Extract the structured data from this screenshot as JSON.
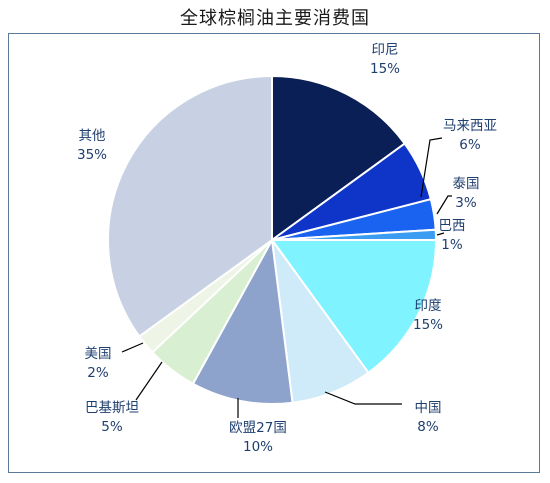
{
  "chart_data": {
    "type": "pie",
    "title": "全球棕榈油主要消费国",
    "slices": [
      {
        "label": "印尼",
        "value": 15,
        "value_label": "15%",
        "color": "#0a1f55"
      },
      {
        "label": "马来西亚",
        "value": 6,
        "value_label": "6%",
        "color": "#0e34c8"
      },
      {
        "label": "泰国",
        "value": 3,
        "value_label": "3%",
        "color": "#1a63f0"
      },
      {
        "label": "巴西",
        "value": 1,
        "value_label": "1%",
        "color": "#3a9df2"
      },
      {
        "label": "印度",
        "value": 15,
        "value_label": "15%",
        "color": "#7ff3ff"
      },
      {
        "label": "中国",
        "value": 8,
        "value_label": "8%",
        "color": "#cfeaf8"
      },
      {
        "label": "欧盟27国",
        "value": 10,
        "value_label": "10%",
        "color": "#8ea3cc"
      },
      {
        "label": "巴基斯坦",
        "value": 5,
        "value_label": "5%",
        "color": "#d9efd2"
      },
      {
        "label": "美国",
        "value": 2,
        "value_label": "2%",
        "color": "#eef4e6"
      },
      {
        "label": "其他",
        "value": 35,
        "value_label": "35%",
        "color": "#c7d1e3"
      }
    ]
  }
}
